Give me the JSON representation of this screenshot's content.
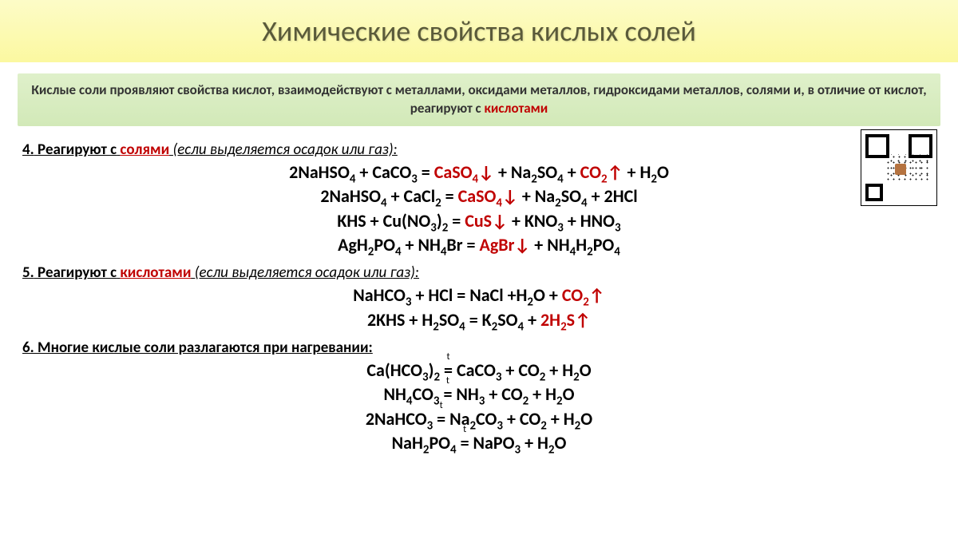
{
  "title": "Химические свойства кислых солей",
  "intro": {
    "prefix": "Кислые соли проявляют свойства кислот, взаимодействуют с металлами, оксидами металлов, гидроксидами металлов, солями и, в отличие от кислот, реагируют с ",
    "highlight": "кислотами"
  },
  "sections": {
    "s4": {
      "num": "4.",
      "verb": "Реагируют с",
      "kw": "солями",
      "note": "(если выделяется осадок или газ):",
      "eqs": [
        {
          "l": "2NaHSO",
          "l4": "4",
          "l2": " + CaCO",
          "l3": "3",
          "eq": " = ",
          "p1": "CaSO",
          "p1s": "4",
          "a1": "↓",
          "m": " + Na",
          "ms": "2",
          "m2": "SO",
          "m2s": "4",
          "m3": " + ",
          "p2": "CO",
          "p2s": "2",
          "a2": "↑",
          "tail": " + H",
          "ts": "2",
          "t2": "O"
        },
        {
          "full_left": "2NaHSO₄ + CaCl₂ = ",
          "prod": "CaSO₄↓",
          "full_right": " + Na₂SO₄ + 2HCl"
        },
        {
          "full_left": "KHS + Cu(NO₃)₂ = ",
          "prod": "CuS↓",
          "full_right": " + KNO₃ + HNO₃"
        },
        {
          "full_left": "AgH₂PO₄ + NH₄Br = ",
          "prod": "AgBr↓",
          "full_right": " + NH₄H₂PO₄"
        }
      ]
    },
    "s5": {
      "num": "5.",
      "verb": "Реагируют с",
      "kw": "кислотами",
      "note": "(если выделяется осадок или газ):",
      "eqs": [
        {
          "full_left": "NaHCO₃ + HCl = NaCl +H₂O + ",
          "prod": "CO₂↑",
          "full_right": ""
        },
        {
          "full_left": "2KHS + H₂SO₄ = K₂SO₄ + ",
          "prod": "2H₂S↑",
          "full_right": ""
        }
      ]
    },
    "s6": {
      "head": "6. Многие кислые соли разлагаются при нагревании:",
      "eqs": [
        {
          "l": "Ca(HCO₃)₂",
          "r": "CaCO₃ + CO₂ + H₂O"
        },
        {
          "l": "NH₄CO₃",
          "r": "NH₃ + CO₂ + H₂O"
        },
        {
          "l": "2NaHCO₃",
          "r": "Na₂CO₃ + CO₂ + H₂O"
        },
        {
          "l": "NaH₂PO₄",
          "r": "NaPO₃ + H₂O"
        }
      ]
    }
  },
  "colors": {
    "title_bg_top": "#fdfcc7",
    "title_bg_bottom": "#fbf8a0",
    "title_text": "#5a5a3a",
    "intro_bg_top": "#dff0ca",
    "intro_bg_bottom": "#d2e9b8",
    "red": "#c00000",
    "black": "#000000",
    "bg": "#ffffff"
  }
}
